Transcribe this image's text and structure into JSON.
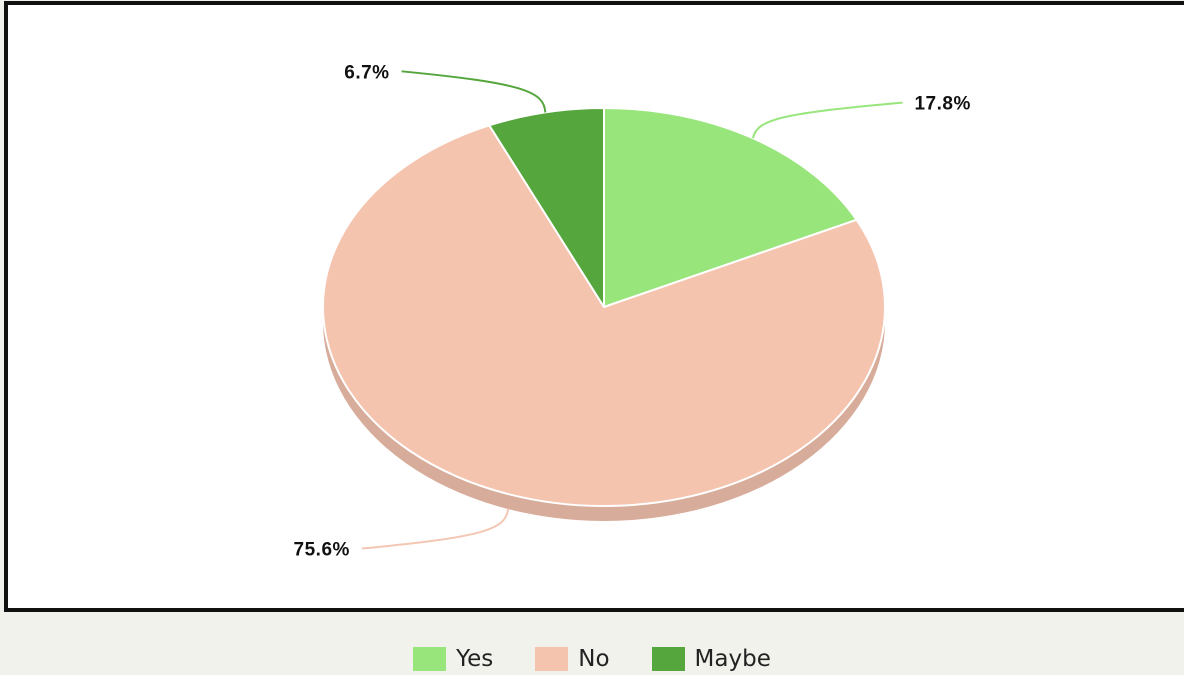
{
  "chart_data": {
    "type": "pie",
    "categories": [
      "Yes",
      "No",
      "Maybe"
    ],
    "values": [
      17.8,
      75.6,
      6.7
    ],
    "labels": [
      "17.8%",
      "75.6%",
      "6.7%"
    ],
    "colors": [
      "#98e57c",
      "#f5c4af",
      "#55a63c"
    ],
    "legend_position": "bottom",
    "style": "3d"
  }
}
